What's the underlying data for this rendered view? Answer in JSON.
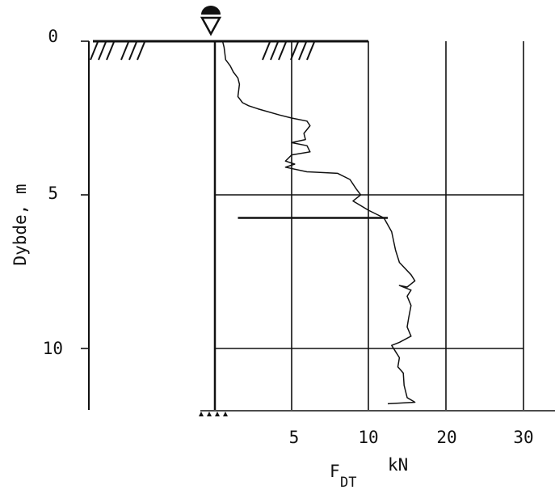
{
  "chart_data": {
    "type": "line",
    "y_axis": {
      "label": "Dybde, m",
      "ticks": [
        "0",
        "5",
        "10"
      ],
      "range": [
        0,
        12
      ],
      "inverted": true
    },
    "x_axis": {
      "label_main": "F",
      "label_sub": "DT",
      "label_unit": "kN",
      "ticks": [
        "5",
        "10",
        "20",
        "30"
      ],
      "tick_values": [
        5,
        10,
        20,
        30
      ],
      "scale": "piecewise: 0-10 then 10-30 compressed"
    },
    "grid": true,
    "series": [
      {
        "points": [
          [
            0.5,
            0.0
          ],
          [
            0.6,
            0.2
          ],
          [
            0.7,
            0.6
          ],
          [
            1.0,
            0.8
          ],
          [
            1.2,
            1.0
          ],
          [
            1.5,
            1.2
          ],
          [
            1.6,
            1.4
          ],
          [
            1.5,
            1.8
          ],
          [
            1.8,
            2.0
          ],
          [
            2.2,
            2.1
          ],
          [
            2.8,
            2.2
          ],
          [
            4.2,
            2.4
          ],
          [
            5.0,
            2.5
          ],
          [
            6.0,
            2.6
          ],
          [
            6.2,
            2.75
          ],
          [
            5.8,
            3.0
          ],
          [
            5.9,
            3.2
          ],
          [
            5.0,
            3.3
          ],
          [
            6.0,
            3.4
          ],
          [
            6.2,
            3.6
          ],
          [
            5.0,
            3.7
          ],
          [
            4.6,
            3.9
          ],
          [
            5.2,
            4.0
          ],
          [
            4.6,
            4.1
          ],
          [
            6.0,
            4.25
          ],
          [
            8.0,
            4.3
          ],
          [
            8.8,
            4.5
          ],
          [
            9.2,
            4.8
          ],
          [
            9.5,
            5.0
          ],
          [
            9.0,
            5.2
          ],
          [
            10.0,
            5.5
          ],
          [
            12.0,
            5.75
          ],
          [
            13.0,
            6.2
          ],
          [
            13.5,
            6.8
          ],
          [
            14.0,
            7.2
          ],
          [
            15.5,
            7.6
          ],
          [
            16.0,
            7.8
          ],
          [
            15.0,
            8.0
          ],
          [
            14.0,
            7.95
          ],
          [
            15.5,
            8.1
          ],
          [
            15.0,
            8.3
          ],
          [
            15.5,
            8.6
          ],
          [
            15.2,
            9.0
          ],
          [
            15.0,
            9.3
          ],
          [
            15.5,
            9.6
          ],
          [
            14.0,
            9.8
          ],
          [
            13.0,
            9.9
          ],
          [
            13.5,
            10.1
          ],
          [
            14.0,
            10.3
          ],
          [
            13.8,
            10.6
          ],
          [
            14.5,
            10.8
          ],
          [
            14.6,
            11.2
          ],
          [
            14.8,
            11.4
          ],
          [
            15.0,
            11.6
          ],
          [
            16.0,
            11.75
          ],
          [
            12.5,
            11.8
          ]
        ]
      }
    ],
    "marker_lines": [
      {
        "depth": 5.75,
        "from": 1.5,
        "to": 12.5
      }
    ],
    "symbols": [
      {
        "type": "groundwater-level",
        "depth": 0
      },
      {
        "type": "ground-surface-hatching",
        "depth": 0
      },
      {
        "type": "bottom-end-marker",
        "depth": 12
      }
    ]
  }
}
